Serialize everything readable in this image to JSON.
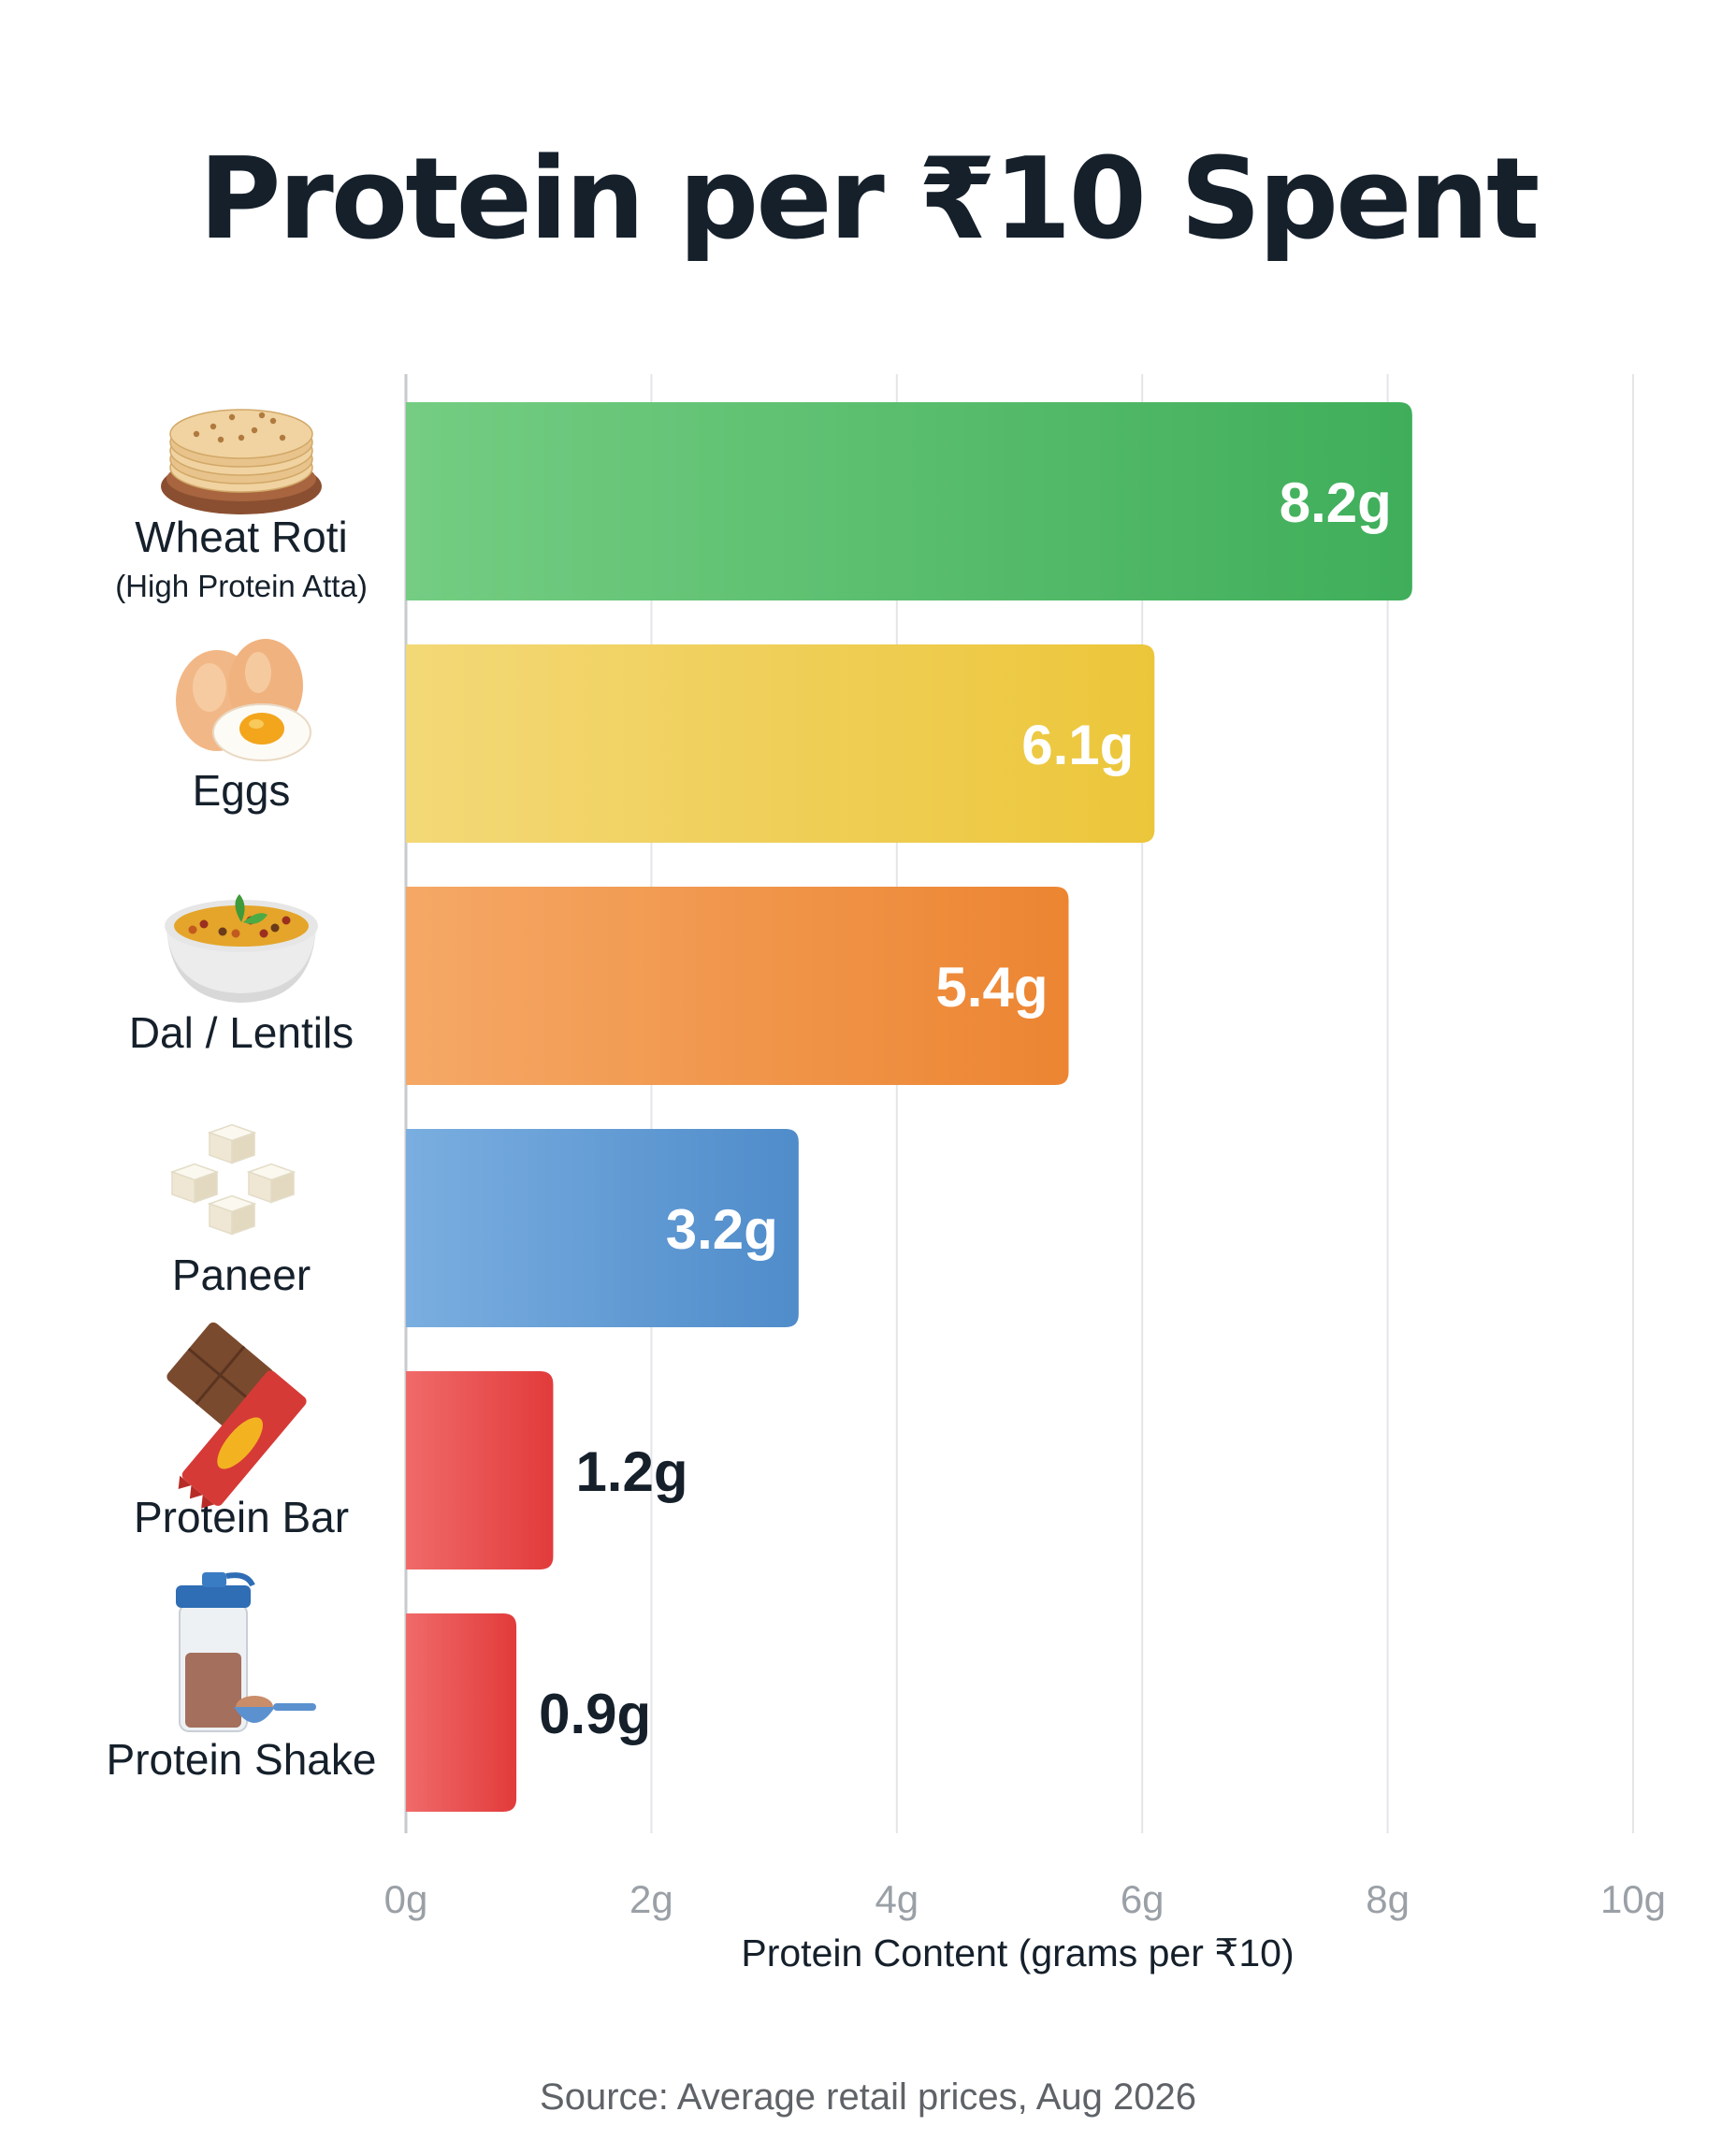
{
  "chart_data": {
    "type": "bar",
    "orientation": "horizontal",
    "title": "Protein per ₹10 Spent",
    "xlabel": "Protein Content (grams per ₹10)",
    "ylabel": "",
    "xlim": [
      0,
      10
    ],
    "x_ticks": [
      {
        "value": 0,
        "label": "0g"
      },
      {
        "value": 2,
        "label": "2g"
      },
      {
        "value": 4,
        "label": "4g"
      },
      {
        "value": 6,
        "label": "6g"
      },
      {
        "value": 8,
        "label": "8g"
      },
      {
        "value": 10,
        "label": "10g"
      }
    ],
    "grid": true,
    "items": [
      {
        "name": "Wheat Roti",
        "subtitle": "(High Protein Atta)",
        "value": 8.2,
        "label": "8.2g",
        "icon": "roti-icon",
        "color_start": "#74cd82",
        "color_end": "#3fae5a",
        "label_color": "#ffffff",
        "label_inside": true
      },
      {
        "name": "Eggs",
        "subtitle": "",
        "value": 6.1,
        "label": "6.1g",
        "icon": "eggs-icon",
        "color_start": "#f3d877",
        "color_end": "#ecc63a",
        "label_color": "#ffffff",
        "label_inside": true
      },
      {
        "name": "Dal / Lentils",
        "subtitle": "",
        "value": 5.4,
        "label": "5.4g",
        "icon": "dal-bowl-icon",
        "color_start": "#f5a866",
        "color_end": "#ec8532",
        "label_color": "#ffffff",
        "label_inside": true
      },
      {
        "name": "Paneer",
        "subtitle": "",
        "value": 3.2,
        "label": "3.2g",
        "icon": "paneer-cubes-icon",
        "color_start": "#7aaee0",
        "color_end": "#4f8cca",
        "label_color": "#ffffff",
        "label_inside": true
      },
      {
        "name": "Protein Bar",
        "subtitle": "",
        "value": 1.2,
        "label": "1.2g",
        "icon": "protein-bar-icon",
        "color_start": "#f06a6a",
        "color_end": "#e23b3b",
        "label_color": "#15202b",
        "label_inside": false
      },
      {
        "name": "Protein Shake",
        "subtitle": "",
        "value": 0.9,
        "label": "0.9g",
        "icon": "protein-shake-icon",
        "color_start": "#f06a6a",
        "color_end": "#e23b3b",
        "label_color": "#15202b",
        "label_inside": false
      }
    ]
  },
  "source": "Source: Average retail prices, Aug 2026",
  "colors": {
    "title": "#15202b",
    "grid": "#e3e5e8",
    "axis": "#c7cace",
    "tick_label": "#9aa0a6",
    "category_label": "#15202b",
    "source": "#5f6368"
  }
}
